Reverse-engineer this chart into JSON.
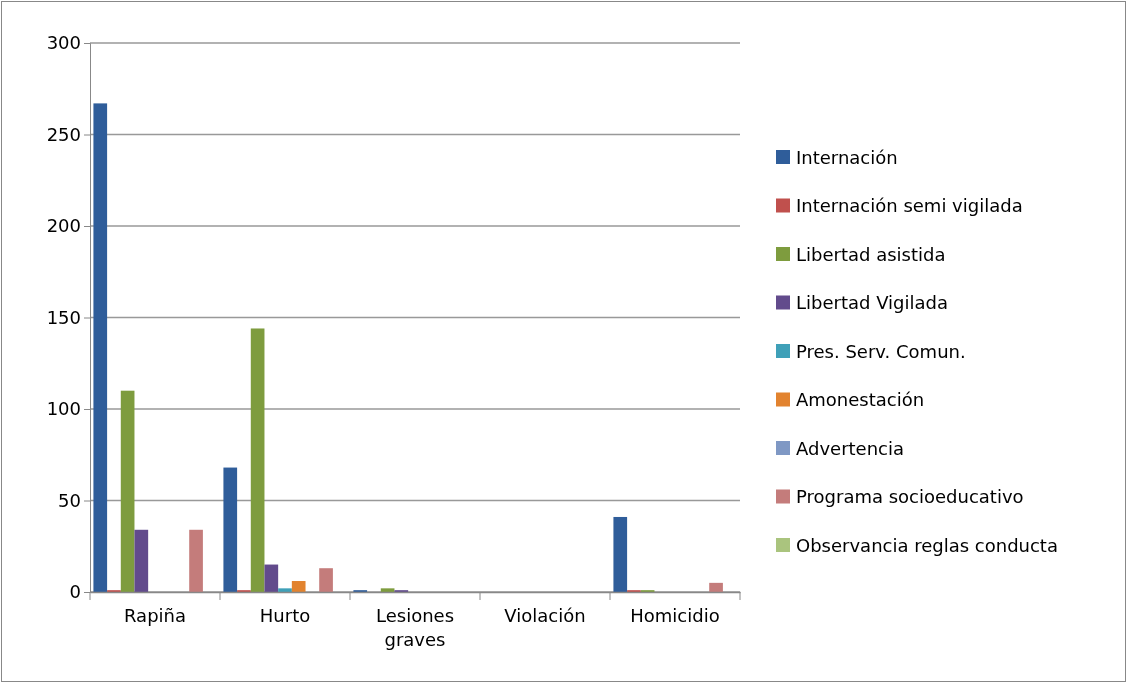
{
  "chart_data": {
    "type": "bar",
    "categories": [
      "Rapiña",
      "Hurto",
      "Lesiones graves",
      "Violación",
      "Homicidio"
    ],
    "series": [
      {
        "name": "Internación",
        "color": "#2f5d9a",
        "values": [
          267,
          68,
          1,
          0,
          41
        ]
      },
      {
        "name": "Internación semi vigilada",
        "color": "#c0504d",
        "values": [
          1,
          1,
          0,
          0,
          1
        ]
      },
      {
        "name": "Libertad asistida",
        "color": "#7e9c3e",
        "values": [
          110,
          144,
          2,
          0,
          1
        ]
      },
      {
        "name": "Libertad Vigilada",
        "color": "#624b8c",
        "values": [
          34,
          15,
          1,
          0,
          0
        ]
      },
      {
        "name": "Pres. Serv. Comun.",
        "color": "#3fa0b8",
        "values": [
          0,
          2,
          0,
          0,
          0
        ]
      },
      {
        "name": "Amonestación",
        "color": "#e2832f",
        "values": [
          0,
          6,
          0,
          0,
          0
        ]
      },
      {
        "name": "Advertencia",
        "color": "#7f98c4",
        "values": [
          0,
          0,
          0,
          0,
          0
        ]
      },
      {
        "name": "Programa socioeducativo",
        "color": "#c47c7b",
        "values": [
          34,
          13,
          0,
          0,
          5
        ]
      },
      {
        "name": "Observancia reglas conducta",
        "color": "#aac47e",
        "values": [
          0,
          0,
          0,
          0,
          0
        ]
      }
    ],
    "ylim": [
      0,
      300
    ],
    "yticks": [
      0,
      50,
      100,
      150,
      200,
      250,
      300
    ],
    "grid": "y",
    "legend": "right"
  }
}
